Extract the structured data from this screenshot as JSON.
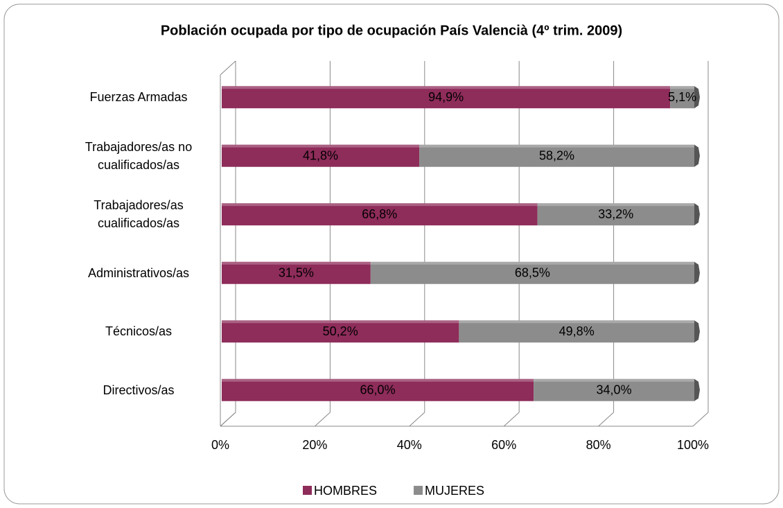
{
  "chart_data": {
    "type": "stacked-bar-horizontal",
    "title": "Población ocupada por tipo de ocupación País Valencià (4º trim. 2009)",
    "categories": [
      "Fuerzas Armadas",
      "Trabajadores/as no cualificados/as",
      "Trabajadores/as cualificados/as",
      "Administrativos/as",
      "Técnicos/as",
      "Directivos/as"
    ],
    "series": [
      {
        "name": "HOMBRES",
        "color": "#8e2c5a",
        "values": [
          94.9,
          41.8,
          66.8,
          31.5,
          50.2,
          66.0
        ],
        "value_labels": [
          "94,9%",
          "41,8%",
          "66,8%",
          "31,5%",
          "50,2%",
          "66,0%"
        ]
      },
      {
        "name": "MUJERES",
        "color": "#8c8c8c",
        "values": [
          5.1,
          58.2,
          33.2,
          68.5,
          49.8,
          34.0
        ],
        "value_labels": [
          "5,1%",
          "58,2%",
          "33,2%",
          "68,5%",
          "49,8%",
          "34,0%"
        ]
      }
    ],
    "xlim": [
      0,
      100
    ],
    "xticks": [
      {
        "value": 0,
        "label": "0%"
      },
      {
        "value": 20,
        "label": "20%"
      },
      {
        "value": 40,
        "label": "40%"
      },
      {
        "value": 60,
        "label": "60%"
      },
      {
        "value": 80,
        "label": "80%"
      },
      {
        "value": 100,
        "label": "100%"
      }
    ],
    "grid": true,
    "legend": "bottom"
  }
}
